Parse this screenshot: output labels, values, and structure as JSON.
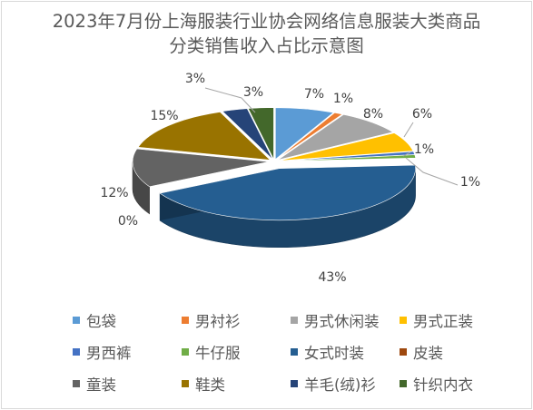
{
  "chart_data": {
    "type": "pie",
    "style": "3d-exploded",
    "title": "2023年7月份上海服装行业协会网络信息服装大类商品分类销售收入占比示意图",
    "title_lines": [
      "2023年7月份上海服装行业协会网络信息服装大类商品",
      "分类销售收入占比示意图"
    ],
    "legend_position": "bottom",
    "slices": [
      {
        "name": "包袋",
        "value": 7,
        "label": "7%",
        "color": "#5B9BD5"
      },
      {
        "name": "男衬衫",
        "value": 1,
        "label": "1%",
        "color": "#ED7D31"
      },
      {
        "name": "男式休闲装",
        "value": 8,
        "label": "8%",
        "color": "#A5A5A5"
      },
      {
        "name": "男式正装",
        "value": 6,
        "label": "6%",
        "color": "#FFC000"
      },
      {
        "name": "男西裤",
        "value": 1,
        "label": "1%",
        "color": "#4472C4"
      },
      {
        "name": "牛仔服",
        "value": 1,
        "label": "1%",
        "color": "#70AD47"
      },
      {
        "name": "女式时装",
        "value": 43,
        "label": "43%",
        "color": "#255E91"
      },
      {
        "name": "皮装",
        "value": 0,
        "label": "0%",
        "color": "#9E480E"
      },
      {
        "name": "童装",
        "value": 12,
        "label": "12%",
        "color": "#636363"
      },
      {
        "name": "鞋类",
        "value": 15,
        "label": "15%",
        "color": "#997300"
      },
      {
        "name": "羊毛(绒)衫",
        "value": 3,
        "label": "3%",
        "color": "#264478"
      },
      {
        "name": "针织内衣",
        "value": 3,
        "label": "3%",
        "color": "#43682B"
      }
    ]
  }
}
